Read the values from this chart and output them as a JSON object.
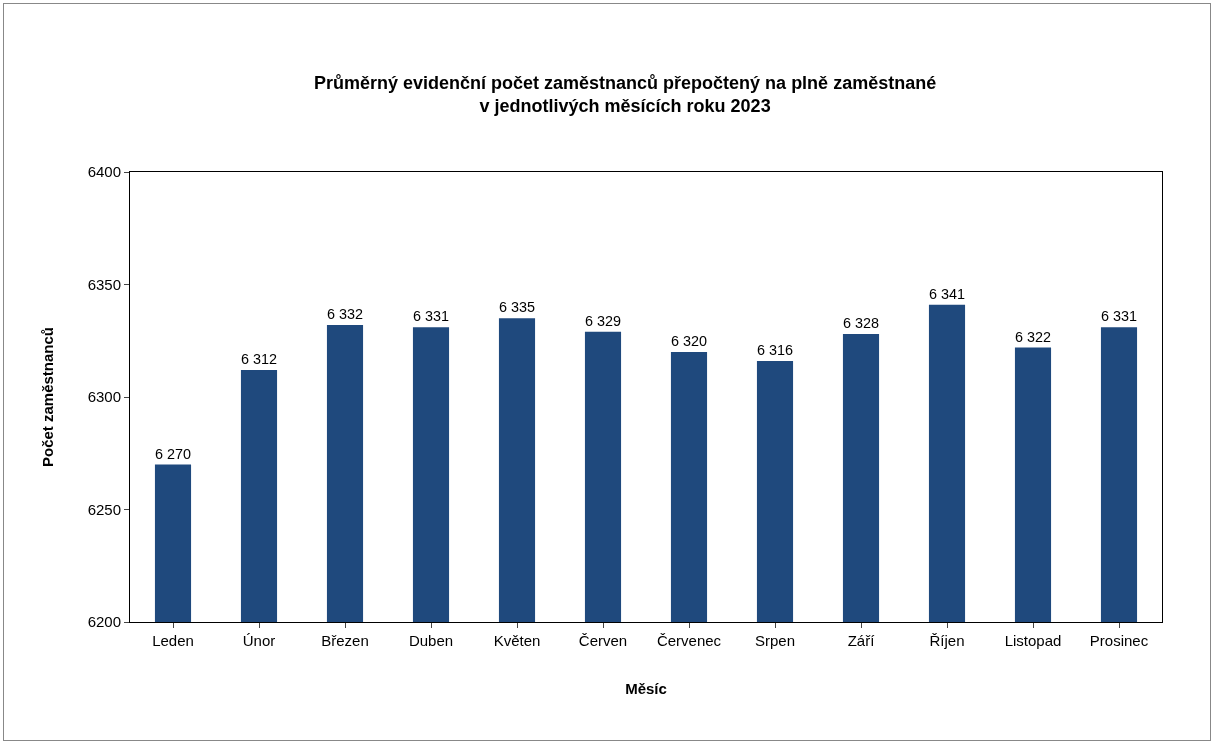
{
  "chart_data": {
    "type": "bar",
    "title": "Průměrný evidenční počet zaměstnanců přepočtený na plně zaměstnané\nv jednotlivých měsících roku 2023",
    "xlabel": "Měsíc",
    "ylabel": "Počet zaměstnanců",
    "categories": [
      "Leden",
      "Únor",
      "Březen",
      "Duben",
      "Květen",
      "Červen",
      "Červenec",
      "Srpen",
      "Září",
      "Říjen",
      "Listopad",
      "Prosinec"
    ],
    "values": [
      6270,
      6312,
      6332,
      6331,
      6335,
      6329,
      6320,
      6316,
      6328,
      6341,
      6322,
      6331
    ],
    "value_labels": [
      "6 270",
      "6 312",
      "6 332",
      "6 331",
      "6 335",
      "6 329",
      "6 320",
      "6 316",
      "6 328",
      "6 341",
      "6 322",
      "6 331"
    ],
    "color": "#1f497d",
    "ylim": [
      6200,
      6400
    ],
    "yticks": [
      6200,
      6250,
      6300,
      6350,
      6400
    ],
    "grid": false
  }
}
